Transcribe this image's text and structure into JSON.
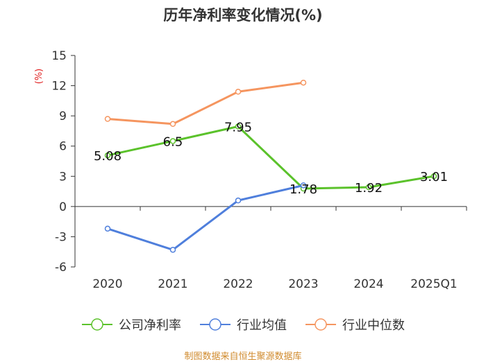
{
  "chart_data": {
    "type": "line",
    "title": "历年净利率变化情况(%)",
    "ylabel": "(%)",
    "categories": [
      "2020",
      "2021",
      "2022",
      "2023",
      "2024",
      "2025Q1"
    ],
    "yticks": [
      15,
      12,
      9,
      6,
      3,
      0,
      -3,
      -6
    ],
    "ylim": [
      -6,
      15
    ],
    "grid": false,
    "legend_position": "bottom",
    "series": [
      {
        "name": "公司净利率",
        "color": "#5bc22b",
        "values": [
          5.08,
          6.5,
          7.95,
          1.78,
          1.92,
          3.01
        ],
        "labels": [
          "5.08",
          "6.5",
          "7.95",
          "1.78",
          "1.92",
          "3.01"
        ]
      },
      {
        "name": "行业均值",
        "color": "#4f7fdc",
        "values": [
          -2.2,
          -4.3,
          0.6,
          2.1,
          null,
          null
        ]
      },
      {
        "name": "行业中位数",
        "color": "#f5955f",
        "values": [
          8.7,
          8.2,
          11.4,
          12.3,
          null,
          null
        ]
      }
    ]
  },
  "source_note": "制图数据来自恒生聚源数据库"
}
